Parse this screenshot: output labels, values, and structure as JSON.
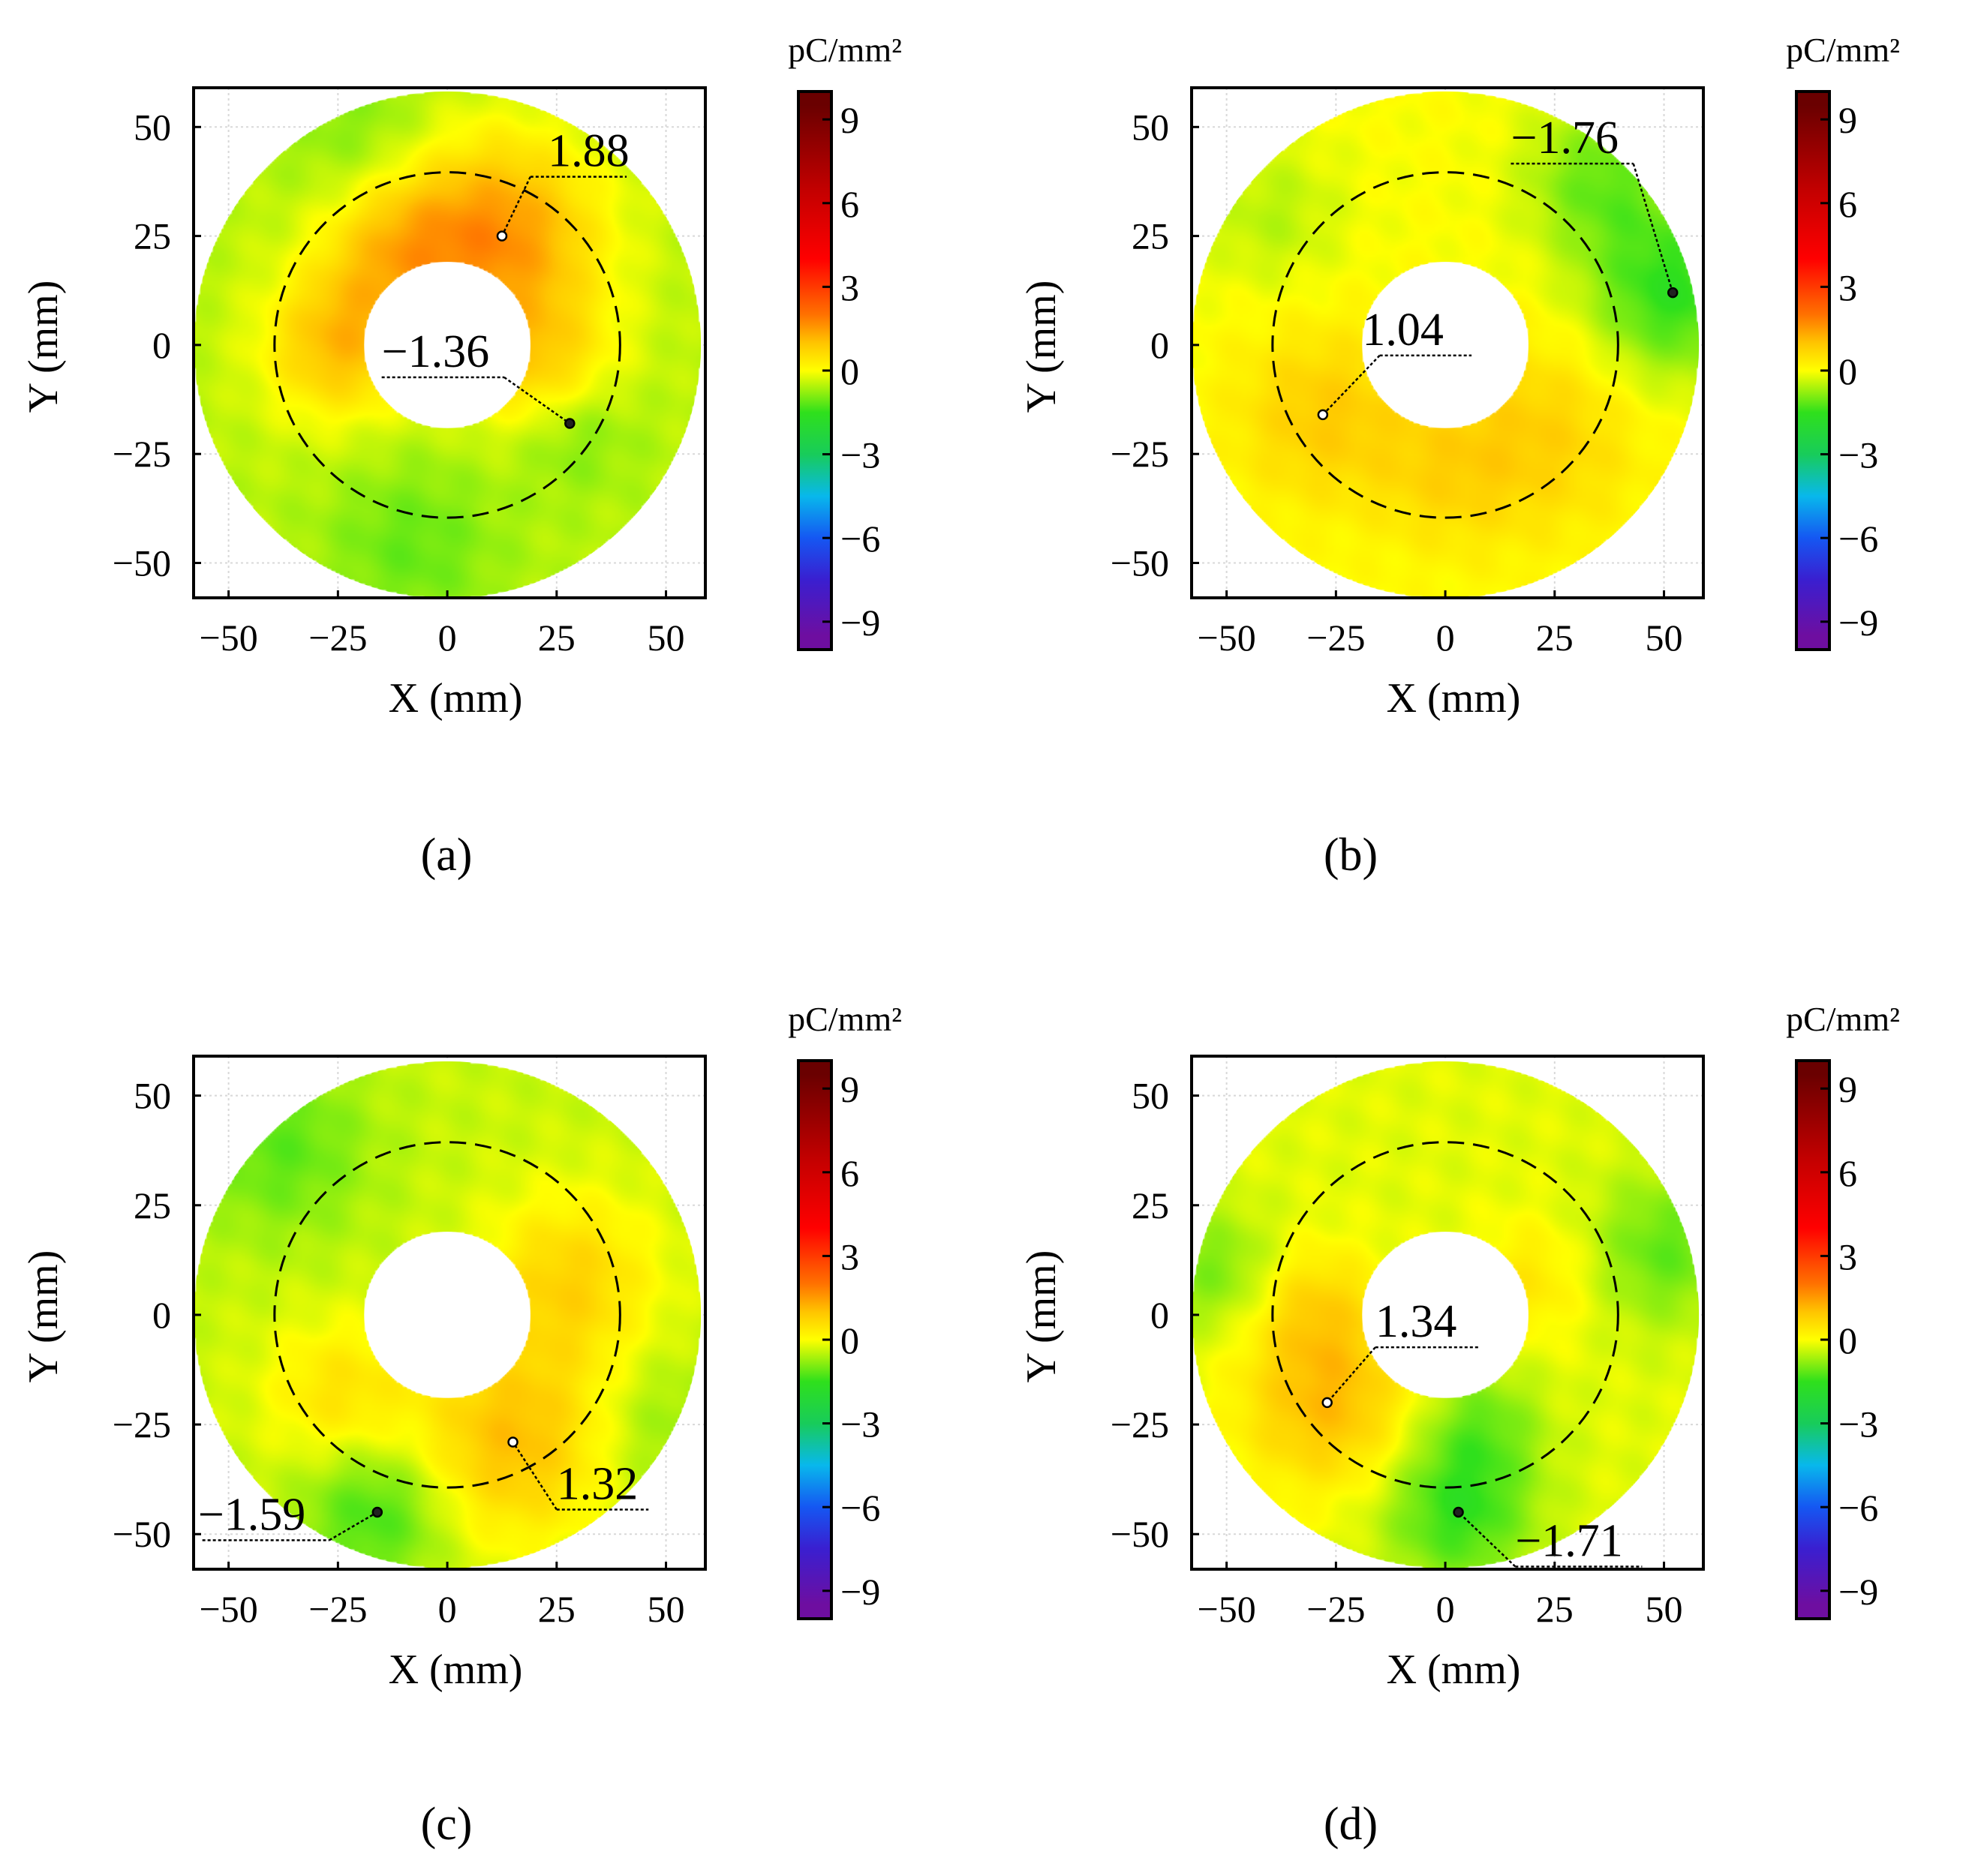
{
  "figure": {
    "colors": {
      "colormap": [
        "#6e0ea0",
        "#3a1fd0",
        "#1557f2",
        "#08b8ec",
        "#18cc5a",
        "#2fe01c",
        "#ffff00",
        "#ffc400",
        "#ff7200",
        "#ff0000",
        "#c20000",
        "#6a0000"
      ],
      "colormap_stops": [
        -9.5,
        -7.5,
        -6,
        -4.5,
        -3,
        -1.5,
        0,
        1,
        2,
        4,
        6.5,
        9.5
      ],
      "frame": "#000000",
      "grid": "#d8d8d8",
      "dashed_circle": "#000000",
      "hole": "#ffffff"
    }
  },
  "chart_data": [
    {
      "type": "heatmap",
      "panel": "a",
      "caption": "(a)",
      "xlabel": "X (mm)",
      "ylabel": "Y (mm)",
      "xlim": [
        -58,
        59
      ],
      "ylim": [
        -58,
        59
      ],
      "xticks": [
        {
          "v": -50,
          "label": "−50"
        },
        {
          "v": -25,
          "label": "−25"
        },
        {
          "v": 0,
          "label": "0"
        },
        {
          "v": 25,
          "label": "25"
        },
        {
          "v": 50,
          "label": "50"
        }
      ],
      "yticks": [
        {
          "v": 50,
          "label": "50"
        },
        {
          "v": 25,
          "label": "25"
        },
        {
          "v": 0,
          "label": "0"
        },
        {
          "v": -25,
          "label": "−25"
        },
        {
          "v": -50,
          "label": "−50"
        }
      ],
      "annulus": {
        "inner_radius_mm": 19,
        "outer_radius_mm": 58,
        "dashed_radius_mm": 39.5
      },
      "base_value": -0.5,
      "blobs": [
        {
          "x": 12,
          "y": 25,
          "r": 16,
          "v": 1.9
        },
        {
          "x": -25,
          "y": 0,
          "r": 12,
          "v": 1.3
        },
        {
          "x": 22,
          "y": -6,
          "r": 12,
          "v": 1.0
        },
        {
          "x": -12,
          "y": 22,
          "r": 12,
          "v": 0.9
        },
        {
          "x": 28,
          "y": -18,
          "r": 10,
          "v": -1.4
        },
        {
          "x": -8,
          "y": -46,
          "r": 14,
          "v": -1.2
        },
        {
          "x": -20,
          "y": 48,
          "r": 12,
          "v": -1.0
        }
      ],
      "annotations": [
        {
          "label": "1.88",
          "value": 1.88,
          "x": 12.5,
          "y": 25,
          "text_x": 23,
          "text_y": 41,
          "line_x": [
            19,
            41
          ],
          "marker": "white"
        },
        {
          "label": "−1.36",
          "value": -1.36,
          "x": 28,
          "y": -18,
          "text_x": -15,
          "text_y": -5,
          "line_x": [
            -15,
            13
          ],
          "marker": "black"
        }
      ],
      "colorbar": {
        "unit": "pC/mm²",
        "range": [
          -10,
          10
        ],
        "ticks": [
          {
            "v": 9,
            "label": "9"
          },
          {
            "v": 6,
            "label": "6"
          },
          {
            "v": 3,
            "label": "3"
          },
          {
            "v": 0,
            "label": "0"
          },
          {
            "v": -3,
            "label": "−3"
          },
          {
            "v": -6,
            "label": "−6"
          },
          {
            "v": -9,
            "label": "−9"
          }
        ]
      }
    },
    {
      "type": "heatmap",
      "panel": "b",
      "caption": "(b)",
      "xlabel": "X (mm)",
      "ylabel": "Y (mm)",
      "xlim": [
        -58,
        59
      ],
      "ylim": [
        -58,
        59
      ],
      "xticks": [
        {
          "v": -50,
          "label": "−50"
        },
        {
          "v": -25,
          "label": "−25"
        },
        {
          "v": 0,
          "label": "0"
        },
        {
          "v": 25,
          "label": "25"
        },
        {
          "v": 50,
          "label": "50"
        }
      ],
      "yticks": [
        {
          "v": 50,
          "label": "50"
        },
        {
          "v": 25,
          "label": "25"
        },
        {
          "v": 0,
          "label": "0"
        },
        {
          "v": -25,
          "label": "−25"
        },
        {
          "v": -50,
          "label": "−50"
        }
      ],
      "annulus": {
        "inner_radius_mm": 19,
        "outer_radius_mm": 58,
        "dashed_radius_mm": 39.5
      },
      "base_value": 0.0,
      "blobs": [
        {
          "x": -28,
          "y": -16,
          "r": 14,
          "v": 1.0
        },
        {
          "x": 22,
          "y": -20,
          "r": 16,
          "v": 0.9
        },
        {
          "x": 0,
          "y": -30,
          "r": 12,
          "v": 0.6
        },
        {
          "x": 52,
          "y": 12,
          "r": 14,
          "v": -1.8
        },
        {
          "x": 35,
          "y": 38,
          "r": 12,
          "v": -1.2
        },
        {
          "x": -40,
          "y": 30,
          "r": 12,
          "v": -0.6
        }
      ],
      "annotations": [
        {
          "label": "1.04",
          "value": 1.04,
          "x": -28,
          "y": -16,
          "text_x": -19,
          "text_y": 0,
          "line_x": [
            -15,
            6
          ],
          "marker": "white"
        },
        {
          "label": "−1.76",
          "value": -1.76,
          "x": 52,
          "y": 12,
          "text_x": 15,
          "text_y": 44,
          "line_x": [
            15,
            43
          ],
          "marker": "black"
        }
      ],
      "colorbar": {
        "unit": "pC/mm²",
        "range": [
          -10,
          10
        ],
        "ticks": [
          {
            "v": 9,
            "label": "9"
          },
          {
            "v": 6,
            "label": "6"
          },
          {
            "v": 3,
            "label": "3"
          },
          {
            "v": 0,
            "label": "0"
          },
          {
            "v": -3,
            "label": "−3"
          },
          {
            "v": -6,
            "label": "−6"
          },
          {
            "v": -9,
            "label": "−9"
          }
        ]
      }
    },
    {
      "type": "heatmap",
      "panel": "c",
      "caption": "(c)",
      "xlabel": "X (mm)",
      "ylabel": "Y (mm)",
      "xlim": [
        -58,
        59
      ],
      "ylim": [
        -58,
        59
      ],
      "xticks": [
        {
          "v": -50,
          "label": "−50"
        },
        {
          "v": -25,
          "label": "−25"
        },
        {
          "v": 0,
          "label": "0"
        },
        {
          "v": 25,
          "label": "25"
        },
        {
          "v": 50,
          "label": "50"
        }
      ],
      "yticks": [
        {
          "v": 50,
          "label": "50"
        },
        {
          "v": 25,
          "label": "25"
        },
        {
          "v": 0,
          "label": "0"
        },
        {
          "v": -25,
          "label": "−25"
        },
        {
          "v": -50,
          "label": "−50"
        }
      ],
      "annulus": {
        "inner_radius_mm": 19,
        "outer_radius_mm": 58,
        "dashed_radius_mm": 39.5
      },
      "base_value": -0.4,
      "blobs": [
        {
          "x": 15,
          "y": -29,
          "r": 16,
          "v": 1.3
        },
        {
          "x": 28,
          "y": 8,
          "r": 14,
          "v": 0.9
        },
        {
          "x": -25,
          "y": -18,
          "r": 12,
          "v": 0.6
        },
        {
          "x": -16,
          "y": -45,
          "r": 12,
          "v": -1.6
        },
        {
          "x": -38,
          "y": 38,
          "r": 14,
          "v": -1.3
        },
        {
          "x": 48,
          "y": -26,
          "r": 12,
          "v": -0.9
        }
      ],
      "annotations": [
        {
          "label": "1.32",
          "value": 1.32,
          "x": 15,
          "y": -29,
          "text_x": 25,
          "text_y": -42,
          "line_x": [
            25,
            46
          ],
          "marker": "white"
        },
        {
          "label": "−1.59",
          "value": -1.59,
          "x": -16,
          "y": -45,
          "text_x": -57,
          "text_y": -49,
          "line_x": [
            -56,
            -27
          ],
          "marker": "black"
        }
      ],
      "colorbar": {
        "unit": "pC/mm²",
        "range": [
          -10,
          10
        ],
        "ticks": [
          {
            "v": 9,
            "label": "9"
          },
          {
            "v": 6,
            "label": "6"
          },
          {
            "v": 3,
            "label": "3"
          },
          {
            "v": 0,
            "label": "0"
          },
          {
            "v": -3,
            "label": "−3"
          },
          {
            "v": -6,
            "label": "−6"
          },
          {
            "v": -9,
            "label": "−9"
          }
        ]
      }
    },
    {
      "type": "heatmap",
      "panel": "d",
      "caption": "(d)",
      "xlabel": "X (mm)",
      "ylabel": "Y (mm)",
      "xlim": [
        -58,
        59
      ],
      "ylim": [
        -58,
        59
      ],
      "xticks": [
        {
          "v": -50,
          "label": "−50"
        },
        {
          "v": -25,
          "label": "−25"
        },
        {
          "v": 0,
          "label": "0"
        },
        {
          "v": 25,
          "label": "25"
        },
        {
          "v": 50,
          "label": "50"
        }
      ],
      "yticks": [
        {
          "v": 50,
          "label": "50"
        },
        {
          "v": 25,
          "label": "25"
        },
        {
          "v": 0,
          "label": "0"
        },
        {
          "v": -25,
          "label": "−25"
        },
        {
          "v": -50,
          "label": "−50"
        }
      ],
      "annulus": {
        "inner_radius_mm": 19,
        "outer_radius_mm": 58,
        "dashed_radius_mm": 39.5
      },
      "base_value": -0.2,
      "blobs": [
        {
          "x": -27,
          "y": -20,
          "r": 14,
          "v": 1.3
        },
        {
          "x": -30,
          "y": 2,
          "r": 10,
          "v": 0.7
        },
        {
          "x": 20,
          "y": 8,
          "r": 10,
          "v": 0.5
        },
        {
          "x": 3,
          "y": -45,
          "r": 12,
          "v": -1.7
        },
        {
          "x": 8,
          "y": -25,
          "r": 10,
          "v": -1.1
        },
        {
          "x": 50,
          "y": 15,
          "r": 12,
          "v": -1.3
        },
        {
          "x": -52,
          "y": 10,
          "r": 10,
          "v": -1.1
        }
      ],
      "annotations": [
        {
          "label": "1.34",
          "value": 1.34,
          "x": -27,
          "y": -20,
          "text_x": -16,
          "text_y": -5,
          "line_x": [
            -16,
            8
          ],
          "marker": "white"
        },
        {
          "label": "−1.71",
          "value": -1.71,
          "x": 3,
          "y": -45,
          "text_x": 16,
          "text_y": -55,
          "line_x": [
            16,
            45
          ],
          "marker": "black"
        }
      ],
      "colorbar": {
        "unit": "pC/mm²",
        "range": [
          -10,
          10
        ],
        "ticks": [
          {
            "v": 9,
            "label": "9"
          },
          {
            "v": 6,
            "label": "6"
          },
          {
            "v": 3,
            "label": "3"
          },
          {
            "v": 0,
            "label": "0"
          },
          {
            "v": -3,
            "label": "−3"
          },
          {
            "v": -6,
            "label": "−6"
          },
          {
            "v": -9,
            "label": "−9"
          }
        ]
      }
    }
  ]
}
